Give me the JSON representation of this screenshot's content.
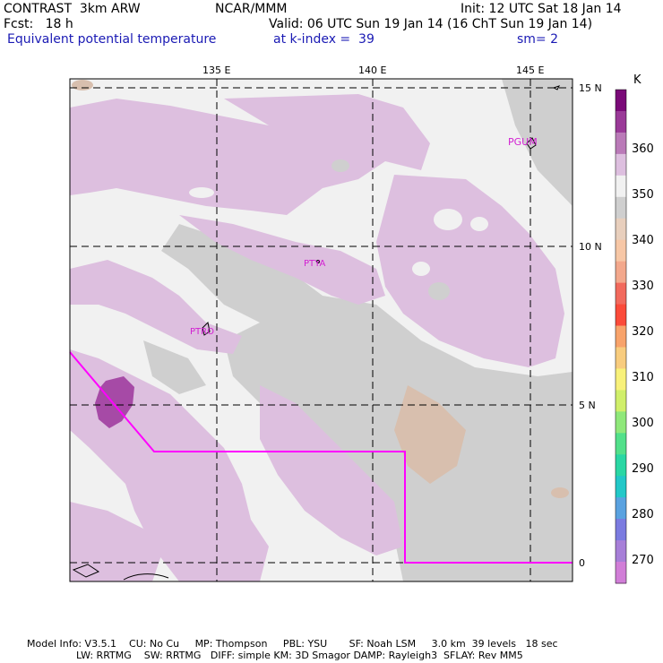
{
  "header": {
    "model": "CONTRAST  3km ARW",
    "center": "NCAR/MMM",
    "init": "Init: 12 UTC Sat 18 Jan 14",
    "fcst": "Fcst:   18 h",
    "valid": "Valid: 06 UTC Sun 19 Jan 14 (16 ChT Sun 19 Jan 14)",
    "field": "Equivalent potential temperature",
    "level": "at k-index =  39",
    "smooth": "sm= 2"
  },
  "axes": {
    "lon_labels": [
      "135 E",
      "140 E",
      "145 E"
    ],
    "lat_labels": [
      "15 N",
      "10 N",
      "5 N",
      "0"
    ]
  },
  "stations": [
    "PGUM",
    "PTYA",
    "PTRO"
  ],
  "colorbar": {
    "unit": "K",
    "labels": [
      "360",
      "350",
      "340",
      "330",
      "320",
      "310",
      "300",
      "290",
      "280",
      "270"
    ],
    "colors": [
      "#7a0a78",
      "#9a3a98",
      "#ba7ab8",
      "#ddbfdf",
      "#f1f1f1",
      "#cfcfcf",
      "#e8cfbd",
      "#f7c7a6",
      "#f3a88c",
      "#f26a5d",
      "#fb4b3a",
      "#f8a36b",
      "#f8cc7e",
      "#f8f17a",
      "#d0ef6a",
      "#8fe87a",
      "#52e08a",
      "#2ad7a4",
      "#23c8c8",
      "#5aa2e0",
      "#7b7be0",
      "#a77fd8",
      "#d17ed7"
    ]
  },
  "colors": {
    "purple_light": "#ddbfdf",
    "purple_dark": "#a64aa6",
    "gray_light": "#f1f1f1",
    "gray_mid": "#cfcfcf",
    "tan": "#d8bfae",
    "boundary": "#ff00ff"
  },
  "footer": {
    "line1": "Model Info: V3.5.1    CU: No Cu     MP: Thompson     PBL: YSU       SF: Noah LSM     3.0 km  39 levels   18 sec",
    "line2": "LW: RRTMG    SW: RRTMG   DIFF: simple KM: 3D Smagor DAMP: Rayleigh3  SFLAY: Rev MM5"
  }
}
